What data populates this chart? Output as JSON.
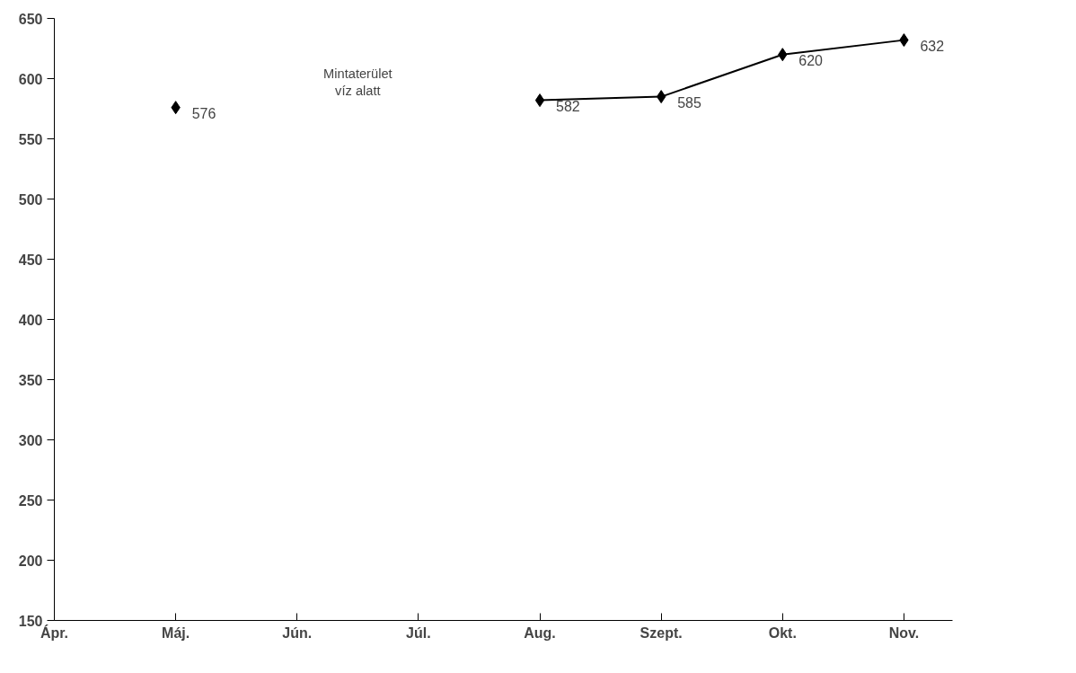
{
  "chart_data": {
    "type": "line",
    "categories": [
      "Ápr.",
      "Máj.",
      "Jún.",
      "Júl.",
      "Aug.",
      "Szept.",
      "Okt.",
      "Nov."
    ],
    "series": [
      {
        "color": "#000000",
        "values": [
          null,
          576,
          null,
          null,
          582,
          585,
          620,
          632
        ]
      }
    ],
    "ylim": [
      150,
      650
    ],
    "yticks": [
      150,
      200,
      250,
      300,
      350,
      400,
      450,
      500,
      550,
      600,
      650
    ],
    "marker": "diamond",
    "line_style": "solid",
    "data_labels": true,
    "grid": false,
    "annotations": [
      "Mintaterület\nvíz alatt"
    ]
  }
}
